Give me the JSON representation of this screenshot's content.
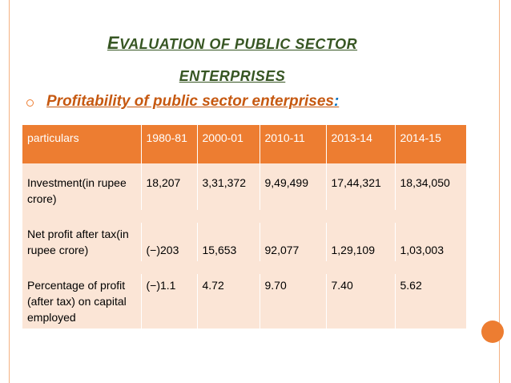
{
  "title": {
    "line1_first": "E",
    "line1_rest": "VALUATION OF PUBLIC SECTOR",
    "line2": "ENTERPRISES"
  },
  "subtitle": {
    "text": "Profitability of public sector enterprises",
    "colon": ":"
  },
  "table": {
    "headers": [
      "particulars",
      "1980-81",
      "2000-01",
      "2010-11",
      "2013-14",
      "2014-15"
    ],
    "rows": [
      [
        "Investment(in rupee crore)",
        "18,207",
        "3,31,372",
        "9,49,499",
        "17,44,321",
        "18,34,050"
      ],
      [
        "Net profit after tax(in rupee crore)",
        "(−)203",
        "15,653",
        "92,077",
        "1,29,109",
        "1,03,003"
      ],
      [
        "Percentage of profit (after tax) on capital employed",
        "(−)1.1",
        "4.72",
        "9.70",
        "7.40",
        "5.62"
      ]
    ]
  },
  "colors": {
    "accent": "#ed7d31",
    "title": "#375623",
    "subtitle": "#c65911",
    "cell_bg": "#fbe5d6"
  }
}
